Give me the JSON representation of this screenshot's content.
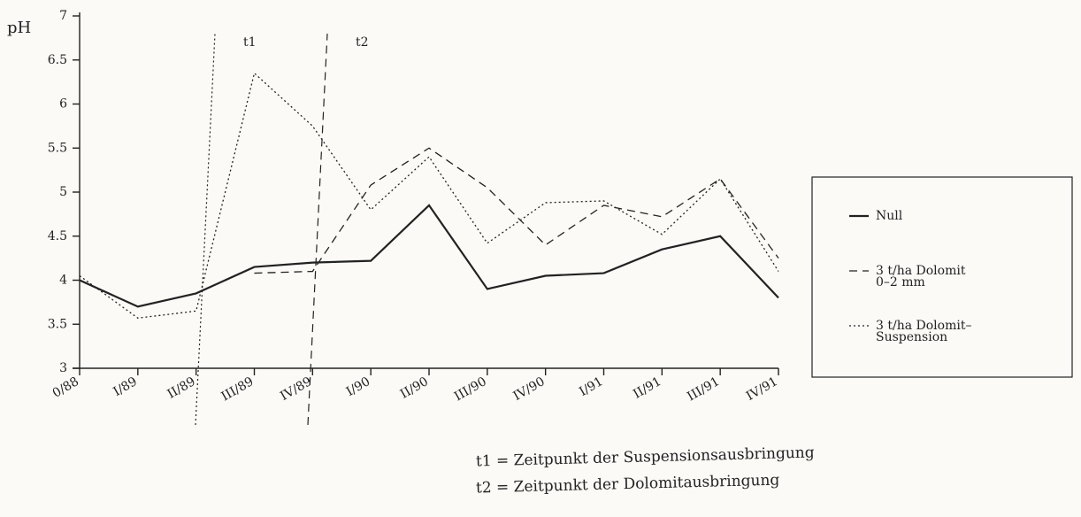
{
  "chart_data": {
    "type": "line",
    "y_label": "pH",
    "categories": [
      "0/88",
      "I/89",
      "II/89",
      "III/89",
      "IV/89",
      "I/90",
      "II/90",
      "III/90",
      "IV/90",
      "I/91",
      "II/91",
      "III/91",
      "IV/91"
    ],
    "series": [
      {
        "name": "Null",
        "color": "#222222",
        "dash": "solid",
        "values": [
          4.0,
          3.7,
          3.85,
          4.15,
          4.2,
          4.22,
          4.85,
          3.9,
          4.05,
          4.08,
          4.35,
          4.5,
          3.8
        ]
      },
      {
        "name": "3 t/ha Dolomit\n0–2 mm",
        "color": "#222222",
        "dash": "dashed",
        "values": [
          null,
          null,
          null,
          4.08,
          4.1,
          5.08,
          5.5,
          5.05,
          4.4,
          4.85,
          4.72,
          5.15,
          4.25
        ]
      },
      {
        "name": "3 t/ha Dolomit–\nSuspension",
        "color": "#222222",
        "dash": "dotted",
        "values": [
          4.05,
          3.57,
          3.65,
          6.35,
          5.75,
          4.8,
          5.4,
          4.42,
          4.88,
          4.9,
          4.52,
          5.15,
          4.1
        ]
      }
    ],
    "ylim": [
      3,
      7
    ],
    "yticks": [
      3,
      3.5,
      4,
      4.5,
      5,
      5.5,
      6,
      6.5,
      7
    ],
    "annotations": [
      {
        "label": "t1",
        "dash": "dotted"
      },
      {
        "label": "t2",
        "dash": "dashed"
      }
    ],
    "footnotes": [
      "t1 = Zeitpunkt der Suspensionsausbringung",
      "t2 = Zeitpunkt der Dolomitausbringung"
    ],
    "legend": "right"
  }
}
